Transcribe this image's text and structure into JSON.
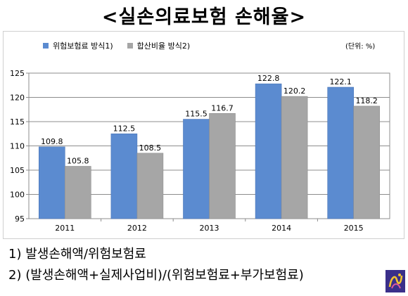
{
  "title": "<실손의료보험  손해율>",
  "unit_label": "(단위: %)",
  "notes": [
    "1)  발생손해액/위험보험료",
    "2)  (발생손해액+실제사업비)/(위험보험료+부가보험료)"
  ],
  "colors": {
    "series_1": "#5b8bd0",
    "series_2": "#a6a6a6",
    "plot_background": "#ffffff",
    "gridline": "#8c8c8c"
  },
  "chart_data": {
    "type": "bar",
    "title": "<실손의료보험  손해율>",
    "categories": [
      "2011",
      "2012",
      "2013",
      "2014",
      "2015"
    ],
    "series": [
      {
        "name": "위험보험료 방식1)",
        "values": [
          109.8,
          112.5,
          115.5,
          122.8,
          122.1
        ]
      },
      {
        "name": "합산비율 방식2)",
        "values": [
          105.8,
          108.5,
          116.7,
          120.2,
          118.2
        ]
      }
    ],
    "ylim": [
      95,
      125
    ],
    "yticks": [
      "95",
      "100",
      "105",
      "110",
      "115",
      "120",
      "125"
    ],
    "grid": true,
    "legend": "top-left",
    "xlabel": "",
    "ylabel": ""
  }
}
